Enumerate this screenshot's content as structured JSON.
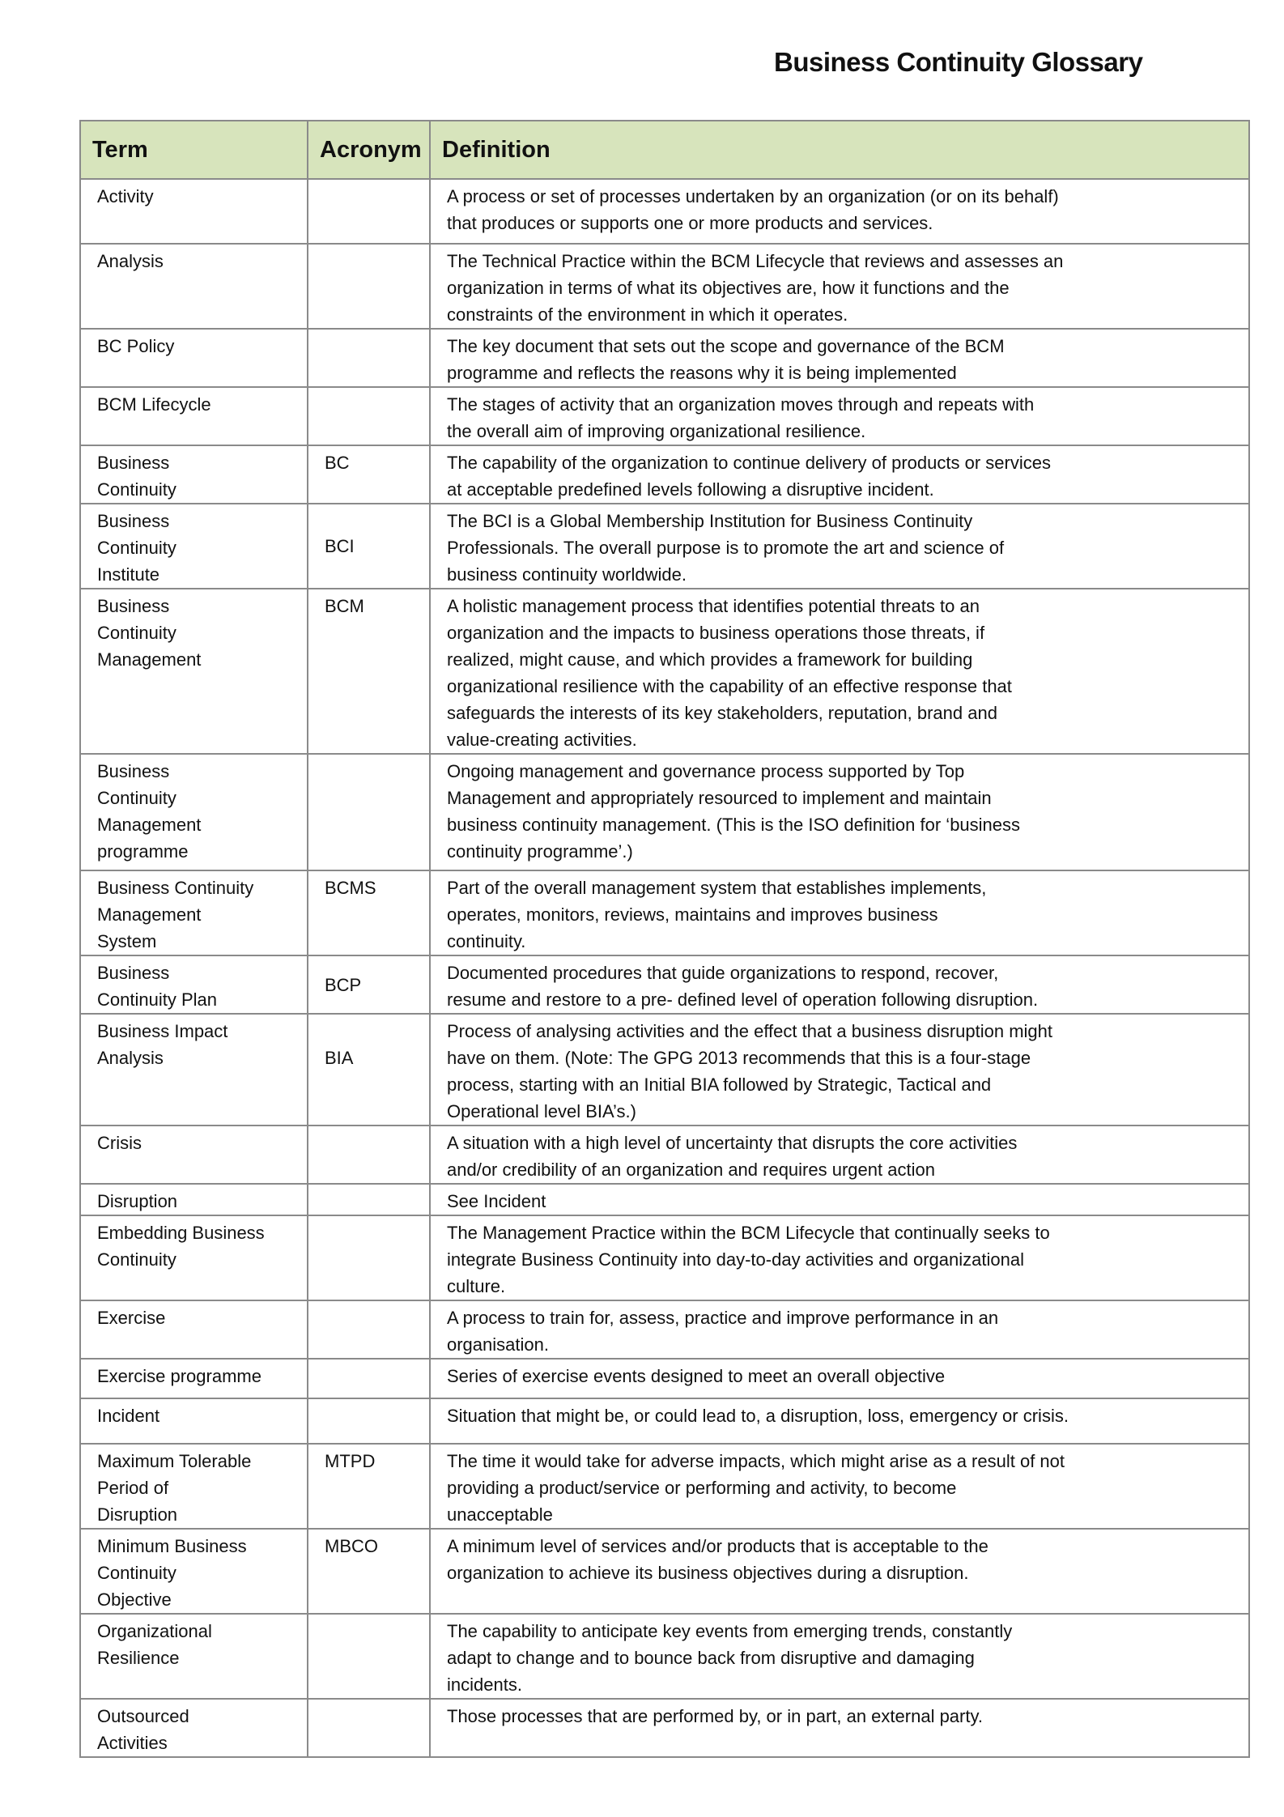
{
  "title": "Business Continuity Glossary",
  "headers": {
    "term": "Term",
    "acronym": "Acronym",
    "definition": "Definition"
  },
  "rows": [
    {
      "term": [
        "Activity"
      ],
      "acronym": "",
      "definition": [
        "A process or set of processes undertaken by an organization (or on its behalf)",
        "that produces or supports one or more products and services."
      ]
    },
    {
      "term": [
        "Analysis"
      ],
      "acronym": "",
      "definition": [
        "The Technical Practice within the BCM Lifecycle that reviews and assesses an",
        "organization in terms of what its objectives are, how it functions and the",
        "constraints of the environment in which it operates."
      ]
    },
    {
      "term": [
        "BC Policy"
      ],
      "acronym": "",
      "definition": [
        "The key document that sets out the scope and governance of the BCM",
        "programme and reflects the reasons why it is being implemented"
      ]
    },
    {
      "term": [
        "BCM Lifecycle"
      ],
      "acronym": "",
      "definition": [
        "The stages of activity that an organization moves through and repeats with",
        "the overall aim of improving organizational resilience."
      ]
    },
    {
      "term": [
        "Business",
        "Continuity"
      ],
      "acronym": "BC",
      "definition": [
        "The capability of the organization to continue delivery of products or services",
        "at acceptable predefined levels following a disruptive incident."
      ]
    },
    {
      "term": [
        "Business",
        "Continuity",
        "Institute"
      ],
      "acronym": "BCI",
      "mid": true,
      "definition": [
        "The BCI is a Global Membership Institution for Business Continuity",
        "Professionals. The overall purpose is to promote the art and science of",
        "business continuity worldwide."
      ]
    },
    {
      "term": [
        "Business",
        "Continuity",
        "Management"
      ],
      "acronym": "BCM",
      "definition": [
        "A holistic management process that identifies potential threats to an",
        "organization and the impacts to business operations those threats, if",
        "realized, might cause, and which provides a framework for building",
        "organizational resilience with the capability of an effective response that",
        "safeguards the interests of its key stakeholders, reputation, brand and",
        "value-creating activities."
      ]
    },
    {
      "term": [
        "Business",
        "Continuity",
        "Management",
        "programme"
      ],
      "acronym": "",
      "definition": [
        "Ongoing management and governance process supported by Top",
        "Management and appropriately resourced to implement and maintain",
        "business continuity management. (This is the ISO definition for ‘business",
        "continuity programme’.)"
      ]
    },
    {
      "term": [
        "Business Continuity",
        "Management",
        "System"
      ],
      "acronym": "BCMS",
      "definition": [
        "Part of the overall management system that establishes implements,",
        "operates, monitors, reviews, maintains and improves business",
        "continuity."
      ]
    },
    {
      "term": [
        "Business",
        "Continuity Plan"
      ],
      "acronym": "BCP",
      "mid": true,
      "definition": [
        "Documented procedures that guide organizations to respond, recover,",
        "resume and restore to a pre- defined level of operation following disruption."
      ]
    },
    {
      "term": [
        "Business Impact",
        "Analysis"
      ],
      "acronym": "BIA",
      "acrTop": true,
      "definition": [
        "Process of analysing activities and the effect that a business disruption might",
        "have on them. (Note: The GPG 2013 recommends that this is a four-stage",
        "process, starting with an Initial BIA followed by Strategic, Tactical and",
        "Operational level BIA’s.)"
      ]
    },
    {
      "term": [
        "Crisis"
      ],
      "acronym": "",
      "definition": [
        "A situation with a high level of uncertainty that disrupts the core activities",
        "and/or credibility of an organization and requires urgent action"
      ]
    },
    {
      "term": [
        "Disruption"
      ],
      "acronym": "",
      "definition": [
        "See Incident"
      ]
    },
    {
      "term": [
        "Embedding Business",
        "Continuity"
      ],
      "acronym": "",
      "definition": [
        " The Management Practice within the BCM Lifecycle that continually seeks to",
        "integrate Business Continuity into day-to-day activities and organizational",
        "culture."
      ]
    },
    {
      "term": [
        "Exercise"
      ],
      "acronym": "",
      "definition": [
        "A process to train for, assess, practice and improve performance in an",
        "organisation."
      ]
    },
    {
      "term": [
        "Exercise programme"
      ],
      "acronym": "",
      "definition": [
        "Series of exercise events designed to meet an overall objective"
      ]
    },
    {
      "term": [
        "Incident"
      ],
      "acronym": "",
      "definition": [
        "Situation that might be, or could lead to, a disruption, loss, emergency or crisis."
      ]
    },
    {
      "term": [
        "Maximum Tolerable",
        "Period of",
        "Disruption"
      ],
      "acronym": "MTPD",
      "definition": [
        "The time it would take for adverse impacts, which might arise as a result of not",
        "providing a product/service or performing and activity, to become",
        "unacceptable"
      ]
    },
    {
      "term": [
        "Minimum Business",
        "Continuity",
        "Objective"
      ],
      "acronym": "MBCO",
      "definition": [
        "A minimum level of services and/or products that is acceptable to the",
        "organization to achieve its business objectives during a disruption."
      ]
    },
    {
      "term": [
        "Organizational",
        "Resilience"
      ],
      "acronym": "",
      "definition": [
        "The capability to anticipate key events from emerging trends, constantly",
        "adapt to change and to bounce back from disruptive and damaging",
        "incidents."
      ]
    },
    {
      "term": [
        "Outsourced",
        "Activities"
      ],
      "acronym": "",
      "definition": [
        "Those processes that are performed by, or in part, an external party."
      ]
    }
  ]
}
